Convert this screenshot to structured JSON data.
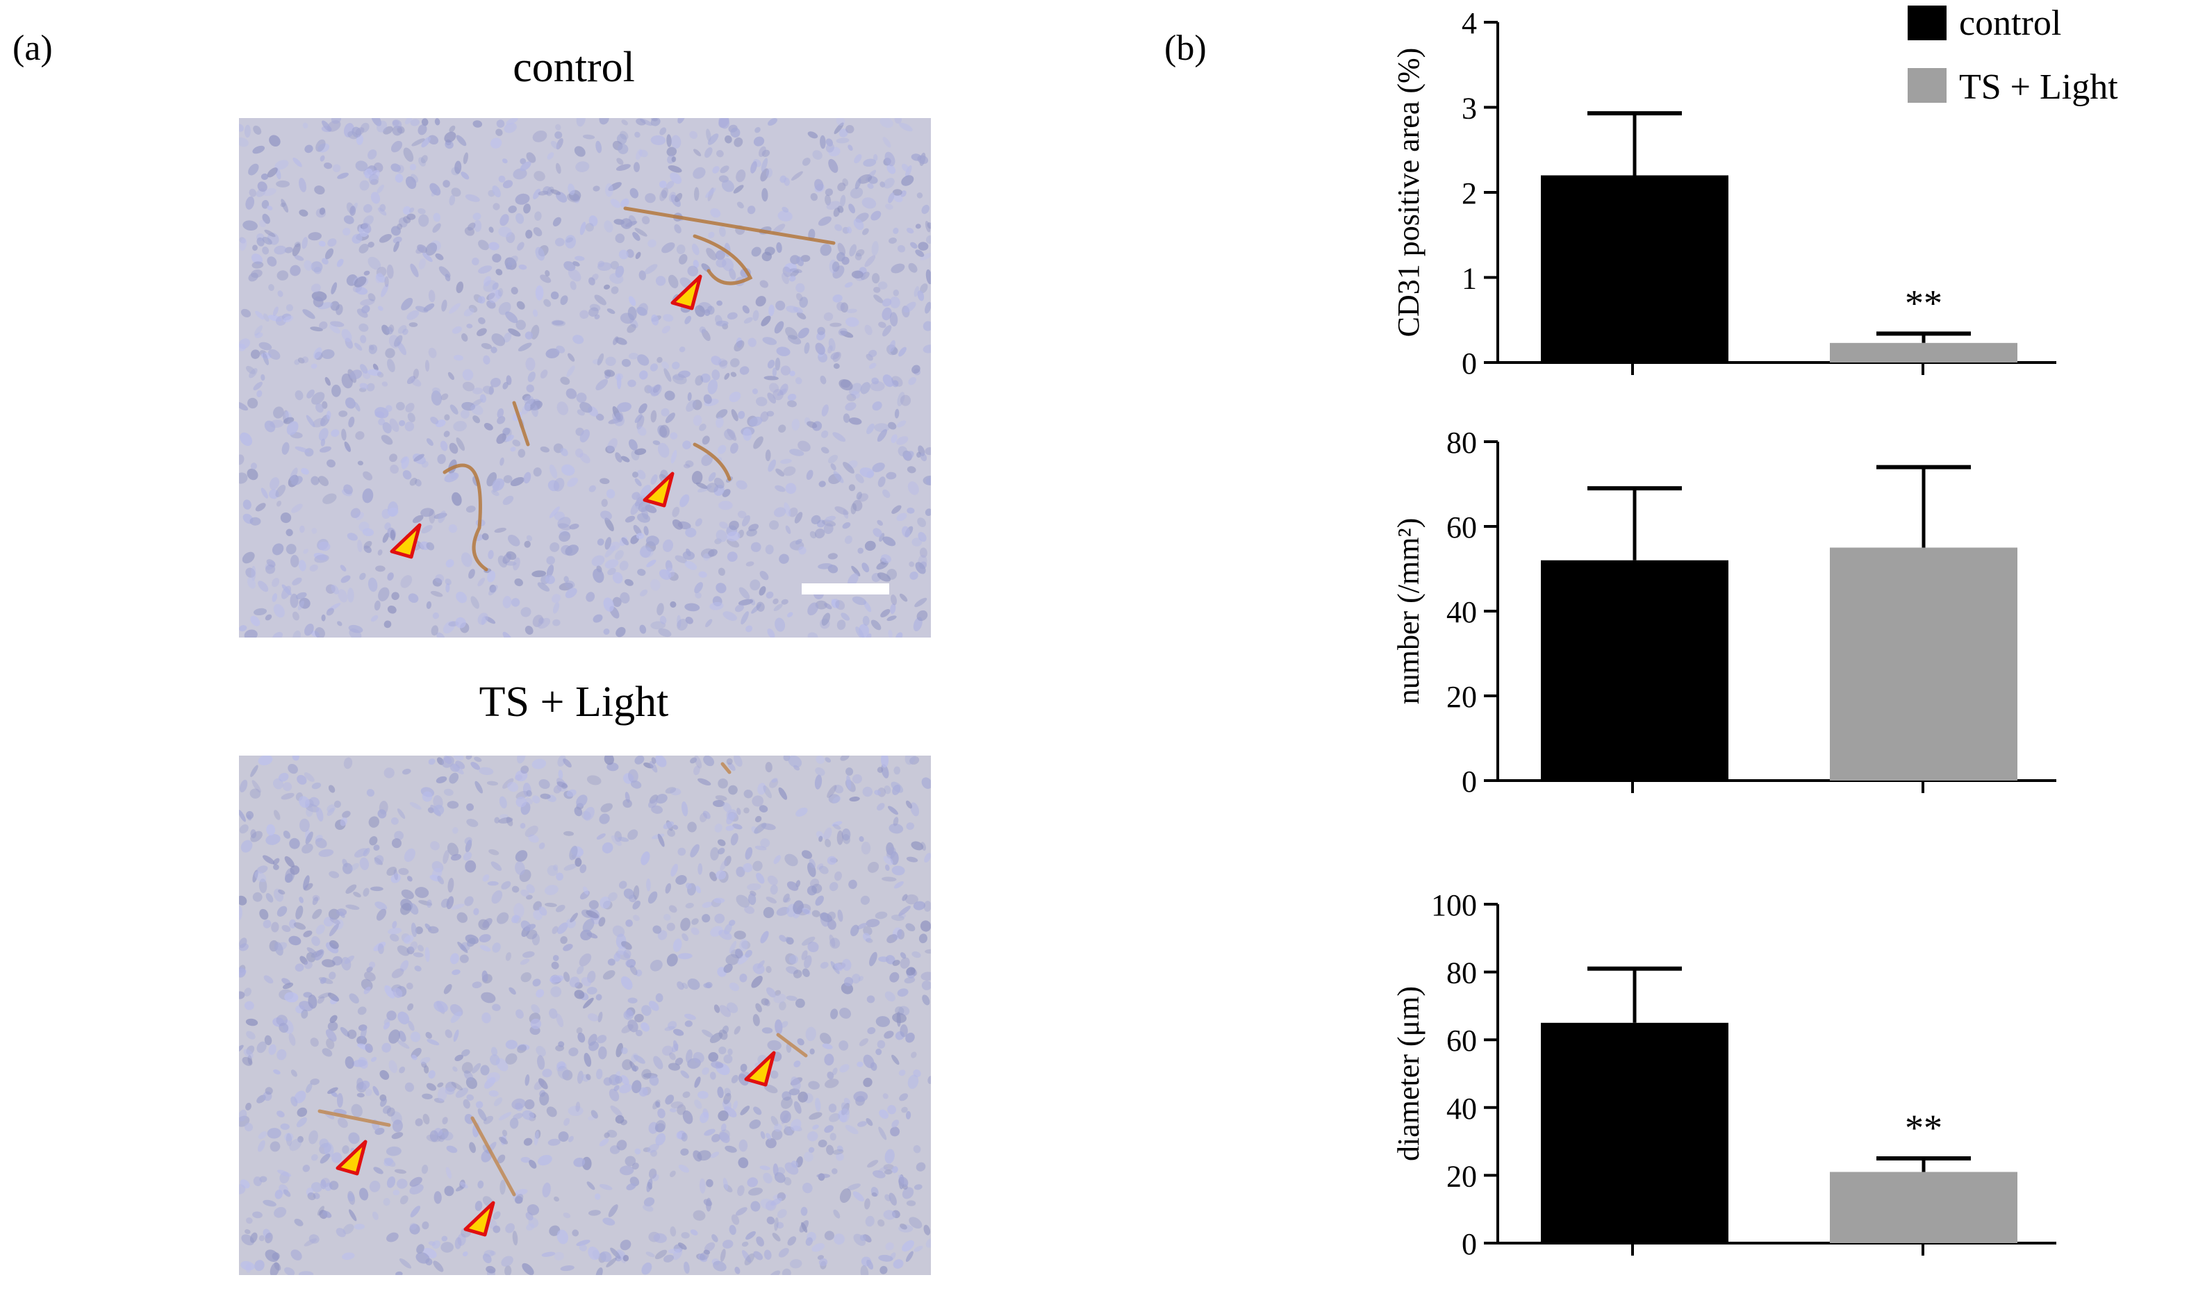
{
  "panels": {
    "a_label": "(a)",
    "b_label": "(b)"
  },
  "images": [
    {
      "title": "control",
      "tissue_color": "#c9c9db",
      "stain_color": "#b4783c",
      "marker_color": "#ffd400",
      "marker_outline": "#e01010",
      "arrow_count": 3,
      "scale_bar": true
    },
    {
      "title": "TS + Light",
      "tissue_color": "#c9c9d8",
      "stain_color": "#c08a55",
      "marker_color": "#ffd400",
      "marker_outline": "#e01010",
      "arrow_count": 3,
      "scale_bar": false
    }
  ],
  "legend": {
    "position": "top-right",
    "entries": [
      {
        "label": "control",
        "color": "#000000"
      },
      {
        "label": "TS + Light",
        "color": "#a0a0a0"
      }
    ]
  },
  "chart_data": [
    {
      "type": "bar",
      "categories": [
        "control",
        "TS + Light"
      ],
      "series": [
        {
          "values": [
            2.2,
            0.23
          ],
          "errors": [
            0.73,
            0.11
          ],
          "colors": [
            "#000000",
            "#a0a0a0"
          ]
        }
      ],
      "annotations": [
        "",
        "**"
      ],
      "ylabel": "CD31  positive area (%)",
      "ylim": [
        0,
        4
      ],
      "yticks": [
        0,
        1,
        2,
        3,
        4
      ]
    },
    {
      "type": "bar",
      "categories": [
        "control",
        "TS + Light"
      ],
      "series": [
        {
          "values": [
            52,
            55
          ],
          "errors": [
            17,
            19
          ],
          "colors": [
            "#000000",
            "#a0a0a0"
          ]
        }
      ],
      "annotations": [
        "",
        ""
      ],
      "ylabel": "number (/mm²)",
      "ylim": [
        0,
        80
      ],
      "yticks": [
        0,
        20,
        40,
        60,
        80
      ]
    },
    {
      "type": "bar",
      "categories": [
        "control",
        "TS + Light"
      ],
      "series": [
        {
          "values": [
            65,
            21
          ],
          "errors": [
            16,
            4
          ],
          "colors": [
            "#000000",
            "#a0a0a0"
          ]
        }
      ],
      "annotations": [
        "",
        "**"
      ],
      "ylabel": "diameter  (μm)",
      "ylim": [
        0,
        100
      ],
      "yticks": [
        0,
        20,
        40,
        60,
        80,
        100
      ]
    }
  ]
}
